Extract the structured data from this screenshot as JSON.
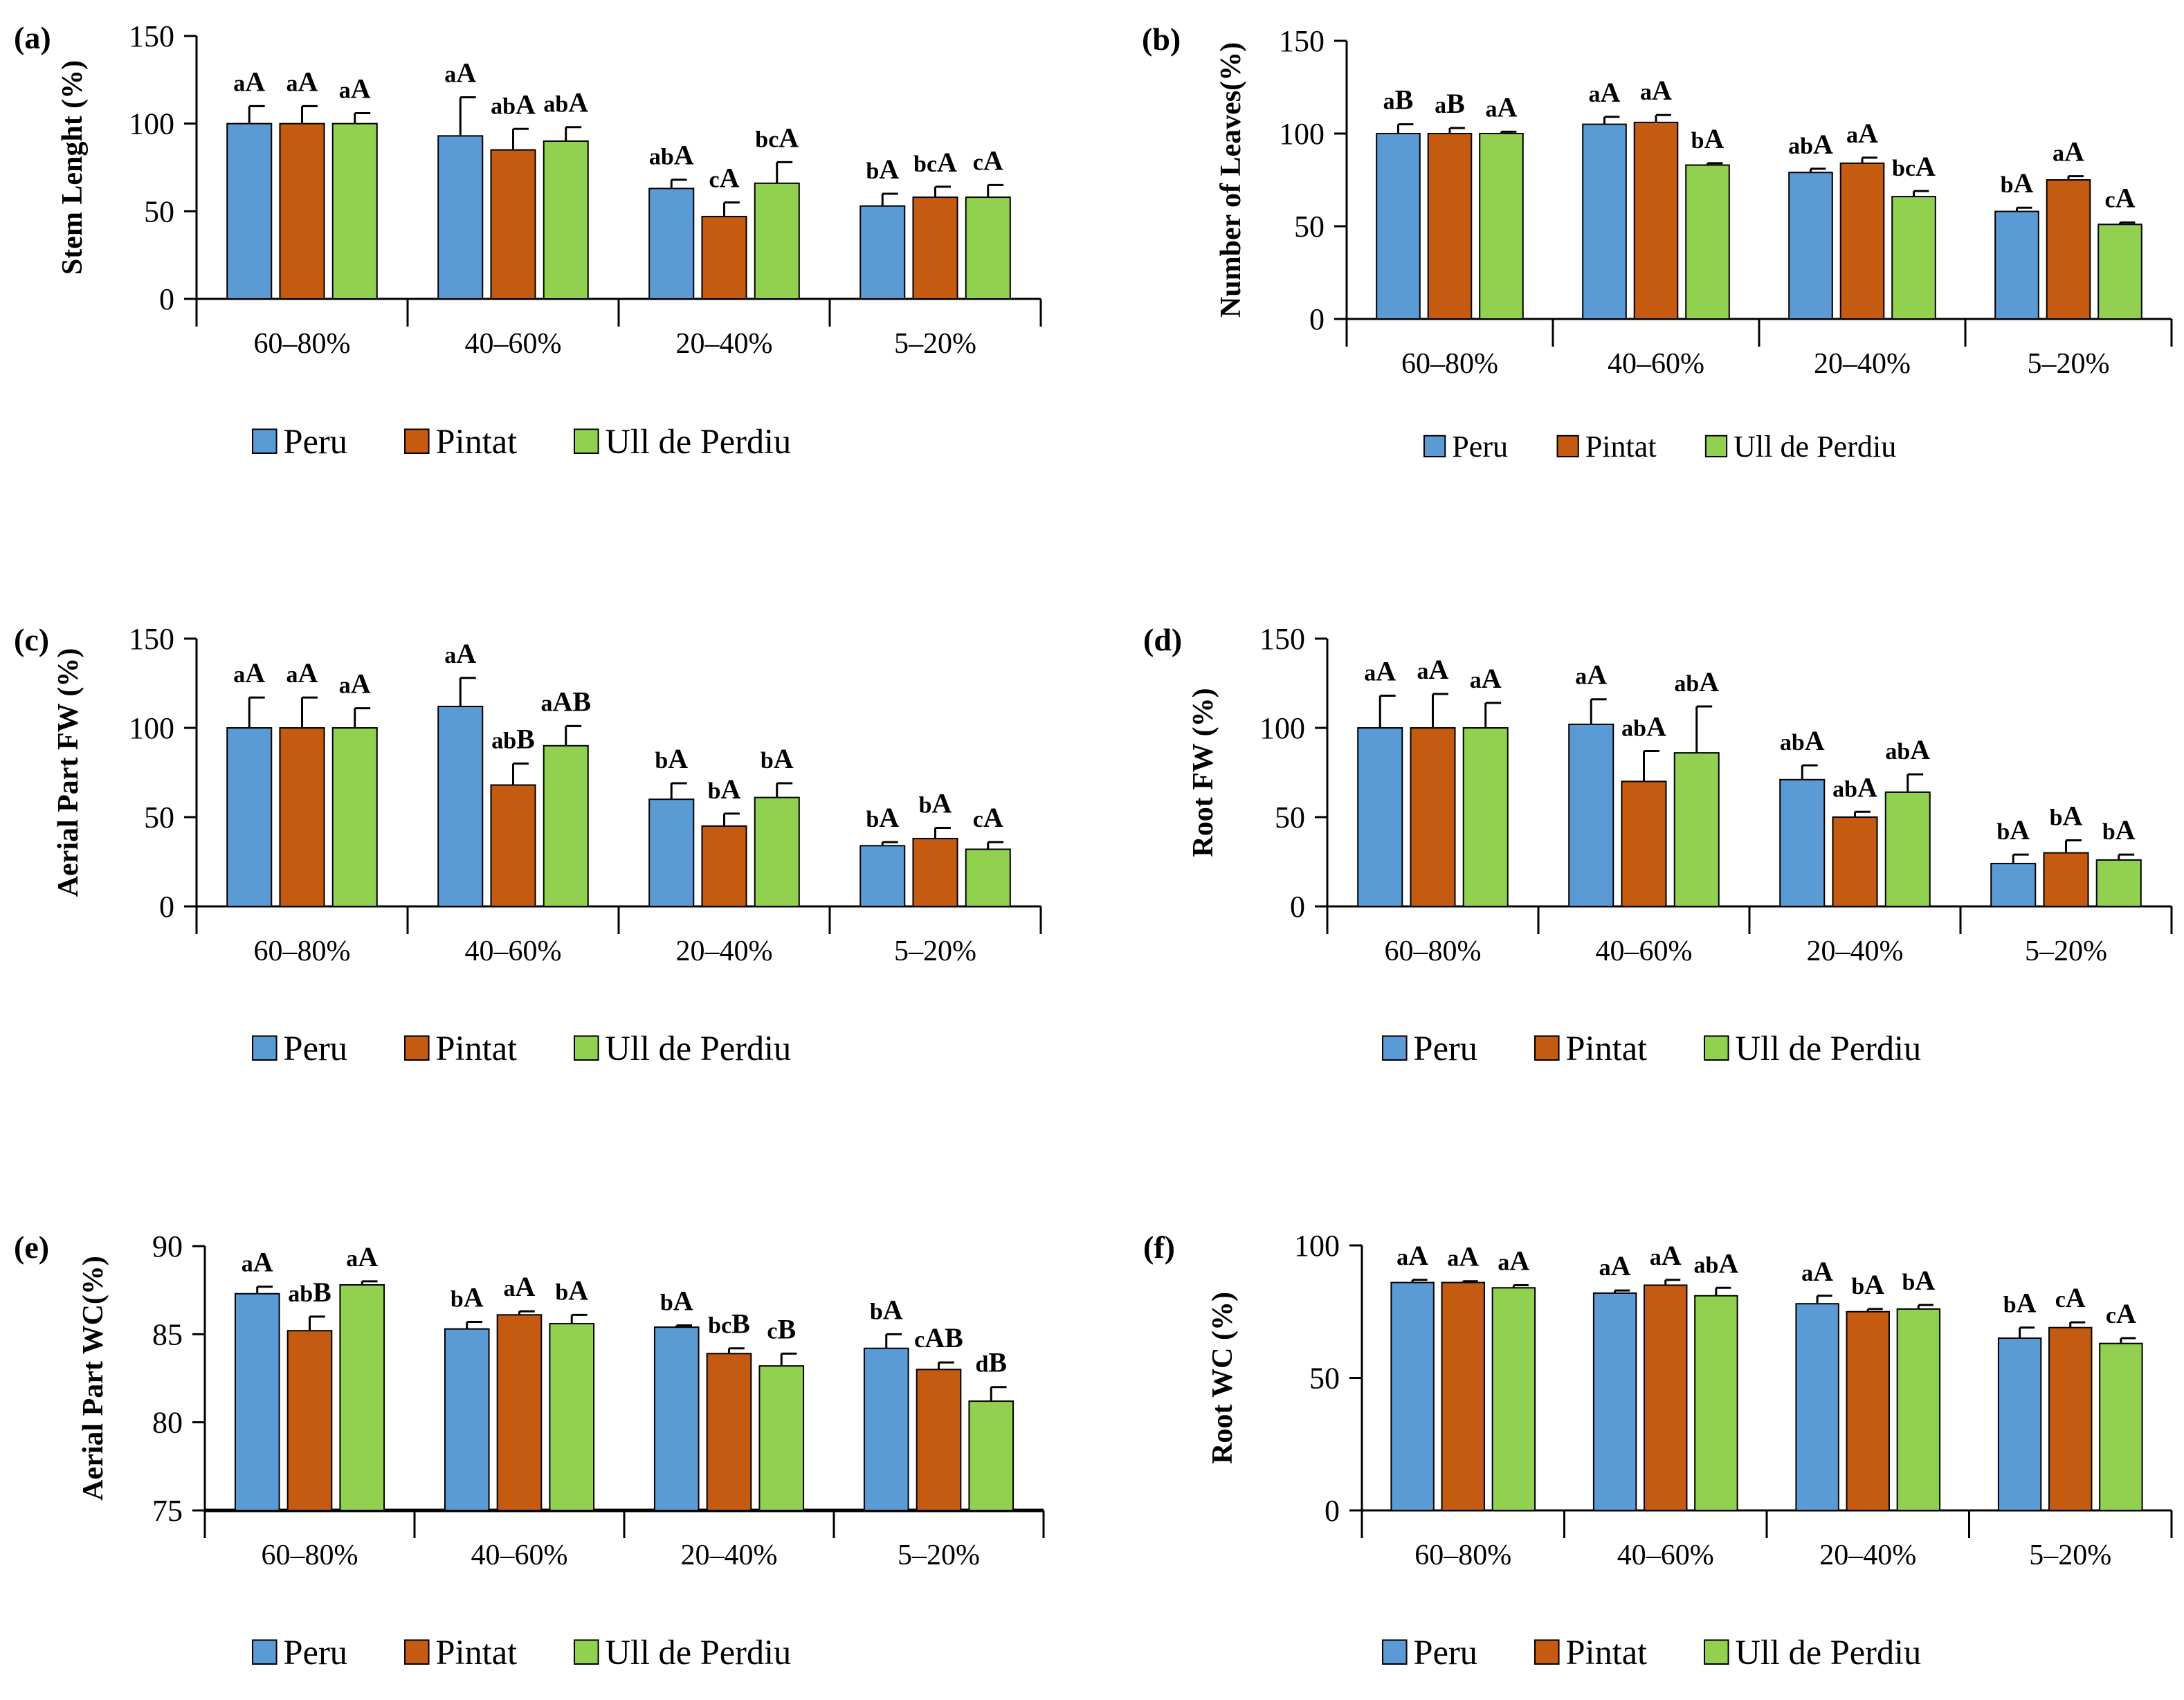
{
  "figure": {
    "legend": [
      {
        "name": "Peru",
        "color": "#5B9BD5"
      },
      {
        "name": "Pintat",
        "color": "#C55A11"
      },
      {
        "name": "Ull de Perdiu",
        "color": "#92D050"
      }
    ],
    "edge_color": "#000000"
  },
  "chart_data": [
    {
      "panel": "(a)",
      "type": "bar",
      "ylabel": "Stem Lenght (%)",
      "categories": [
        "60–80%",
        "40–60%",
        "20–40%",
        "5–20%"
      ],
      "ylim": [
        0,
        150
      ],
      "yticks": [
        0,
        50,
        100,
        150
      ],
      "series": [
        {
          "name": "Peru",
          "values": [
            100,
            93,
            63,
            53
          ],
          "errors": [
            10,
            22,
            5,
            7
          ],
          "labels": [
            [
              "a",
              "A"
            ],
            [
              "a",
              "A"
            ],
            [
              "ab",
              "A"
            ],
            [
              "b",
              "A"
            ]
          ]
        },
        {
          "name": "Pintat",
          "values": [
            100,
            85,
            47,
            58
          ],
          "errors": [
            10,
            12,
            8,
            6
          ],
          "labels": [
            [
              "a",
              "A"
            ],
            [
              "ab",
              "A"
            ],
            [
              "c",
              "A"
            ],
            [
              "bc",
              "A"
            ]
          ]
        },
        {
          "name": "Ull de Perdiu",
          "values": [
            100,
            90,
            66,
            58
          ],
          "errors": [
            6,
            8,
            12,
            7
          ],
          "labels": [
            [
              "a",
              "A"
            ],
            [
              "ab",
              "A"
            ],
            [
              "bc",
              "A"
            ],
            [
              "c",
              "A"
            ]
          ]
        }
      ]
    },
    {
      "panel": "(b)",
      "type": "bar",
      "ylabel": "Number of Leaves(%)",
      "categories": [
        "60–80%",
        "40–60%",
        "20–40%",
        "5–20%"
      ],
      "ylim": [
        0,
        150
      ],
      "yticks": [
        0,
        50,
        100,
        150
      ],
      "series": [
        {
          "name": "Peru",
          "values": [
            100,
            105,
            79,
            58
          ],
          "errors": [
            5,
            4,
            2,
            2
          ],
          "labels": [
            [
              "a",
              "B"
            ],
            [
              "a",
              "A"
            ],
            [
              "ab",
              "A"
            ],
            [
              "b",
              "A"
            ]
          ]
        },
        {
          "name": "Pintat",
          "values": [
            100,
            106,
            84,
            75
          ],
          "errors": [
            3,
            4,
            3,
            2
          ],
          "labels": [
            [
              "a",
              "B"
            ],
            [
              "a",
              "A"
            ],
            [
              "a",
              "A"
            ],
            [
              "a",
              "A"
            ]
          ]
        },
        {
          "name": "Ull de Perdiu",
          "values": [
            100,
            83,
            66,
            51
          ],
          "errors": [
            1,
            1,
            3,
            1
          ],
          "labels": [
            [
              "a",
              "A"
            ],
            [
              "b",
              "A"
            ],
            [
              "bc",
              "A"
            ],
            [
              "c",
              "A"
            ]
          ]
        }
      ]
    },
    {
      "panel": "(c)",
      "type": "bar",
      "ylabel": "Aerial Part FW (%)",
      "categories": [
        "60–80%",
        "40–60%",
        "20–40%",
        "5–20%"
      ],
      "ylim": [
        0,
        150
      ],
      "yticks": [
        0,
        50,
        100,
        150
      ],
      "series": [
        {
          "name": "Peru",
          "values": [
            100,
            112,
            60,
            34
          ],
          "errors": [
            17,
            16,
            9,
            2
          ],
          "labels": [
            [
              "a",
              "A"
            ],
            [
              "a",
              "A"
            ],
            [
              "b",
              "A"
            ],
            [
              "b",
              "A"
            ]
          ]
        },
        {
          "name": "Pintat",
          "values": [
            100,
            68,
            45,
            38
          ],
          "errors": [
            17,
            12,
            7,
            6
          ],
          "labels": [
            [
              "a",
              "A"
            ],
            [
              "ab",
              "B"
            ],
            [
              "b",
              "A"
            ],
            [
              "b",
              "A"
            ]
          ]
        },
        {
          "name": "Ull de Perdiu",
          "values": [
            100,
            90,
            61,
            32
          ],
          "errors": [
            11,
            11,
            8,
            4
          ],
          "labels": [
            [
              "a",
              "A"
            ],
            [
              "a",
              "AB"
            ],
            [
              "b",
              "A"
            ],
            [
              "c",
              "A"
            ]
          ]
        }
      ]
    },
    {
      "panel": "(d)",
      "type": "bar",
      "ylabel": "Root FW (%)",
      "categories": [
        "60–80%",
        "40–60%",
        "20–40%",
        "5–20%"
      ],
      "ylim": [
        0,
        150
      ],
      "yticks": [
        0,
        50,
        100,
        150
      ],
      "series": [
        {
          "name": "Peru",
          "values": [
            100,
            102,
            71,
            24
          ],
          "errors": [
            18,
            14,
            8,
            5
          ],
          "labels": [
            [
              "a",
              "A"
            ],
            [
              "a",
              "A"
            ],
            [
              "ab",
              "A"
            ],
            [
              "b",
              "A"
            ]
          ]
        },
        {
          "name": "Pintat",
          "values": [
            100,
            70,
            50,
            30
          ],
          "errors": [
            19,
            17,
            3,
            7
          ],
          "labels": [
            [
              "a",
              "A"
            ],
            [
              "ab",
              "A"
            ],
            [
              "ab",
              "A"
            ],
            [
              "b",
              "A"
            ]
          ]
        },
        {
          "name": "Ull de Perdiu",
          "values": [
            100,
            86,
            64,
            26
          ],
          "errors": [
            14,
            26,
            10,
            3
          ],
          "labels": [
            [
              "a",
              "A"
            ],
            [
              "ab",
              "A"
            ],
            [
              "ab",
              "A"
            ],
            [
              "b",
              "A"
            ]
          ]
        }
      ]
    },
    {
      "panel": "(e)",
      "type": "bar",
      "ylabel": "Aerial Part WC(%)",
      "categories": [
        "60–80%",
        "40–60%",
        "20–40%",
        "5–20%"
      ],
      "ylim": [
        75,
        90
      ],
      "yticks": [
        75,
        80,
        85,
        90
      ],
      "series": [
        {
          "name": "Peru",
          "values": [
            87.3,
            85.3,
            85.4,
            84.2
          ],
          "errors": [
            0.4,
            0.4,
            0.1,
            0.8
          ],
          "labels": [
            [
              "a",
              "A"
            ],
            [
              "b",
              "A"
            ],
            [
              "b",
              "A"
            ],
            [
              "b",
              "A"
            ]
          ]
        },
        {
          "name": "Pintat",
          "values": [
            85.2,
            86.1,
            83.9,
            83.0
          ],
          "errors": [
            0.8,
            0.2,
            0.3,
            0.4
          ],
          "labels": [
            [
              "ab",
              "B"
            ],
            [
              "a",
              "A"
            ],
            [
              "bc",
              "B"
            ],
            [
              "c",
              "AB"
            ]
          ]
        },
        {
          "name": "Ull de Perdiu",
          "values": [
            87.8,
            85.6,
            83.2,
            81.2
          ],
          "errors": [
            0.2,
            0.5,
            0.7,
            0.8
          ],
          "labels": [
            [
              "a",
              "A"
            ],
            [
              "b",
              "A"
            ],
            [
              "c",
              "B"
            ],
            [
              "d",
              "B"
            ]
          ]
        }
      ]
    },
    {
      "panel": "(f)",
      "type": "bar",
      "ylabel": "Root WC (%)",
      "categories": [
        "60–80%",
        "40–60%",
        "20–40%",
        "5–20%"
      ],
      "ylim": [
        0,
        100
      ],
      "yticks": [
        0,
        50,
        100
      ],
      "series": [
        {
          "name": "Peru",
          "values": [
            86,
            82,
            78,
            65
          ],
          "errors": [
            1,
            1,
            3,
            4
          ],
          "labels": [
            [
              "a",
              "A"
            ],
            [
              "a",
              "A"
            ],
            [
              "a",
              "A"
            ],
            [
              "b",
              "A"
            ]
          ]
        },
        {
          "name": "Pintat",
          "values": [
            86,
            85,
            75,
            69
          ],
          "errors": [
            0.5,
            2,
            1,
            2
          ],
          "labels": [
            [
              "a",
              "A"
            ],
            [
              "a",
              "A"
            ],
            [
              "b",
              "A"
            ],
            [
              "c",
              "A"
            ]
          ]
        },
        {
          "name": "Ull de Perdiu",
          "values": [
            84,
            81,
            76,
            63
          ],
          "errors": [
            1,
            3,
            1.5,
            2
          ],
          "labels": [
            [
              "a",
              "A"
            ],
            [
              "ab",
              "A"
            ],
            [
              "b",
              "A"
            ],
            [
              "c",
              "A"
            ]
          ]
        }
      ]
    }
  ]
}
